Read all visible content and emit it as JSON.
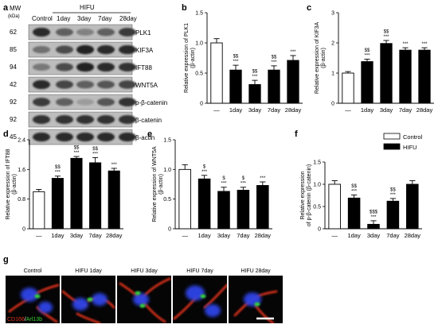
{
  "panel_letters": [
    "a",
    "b",
    "c",
    "d",
    "e",
    "f",
    "g"
  ],
  "blot": {
    "mw_header": "MW",
    "mw_unit": "(kDa)",
    "group_header": "HIFU",
    "lanes": [
      "Control",
      "1day",
      "3day",
      "7day",
      "28day"
    ],
    "rows": [
      {
        "mw": "62",
        "name": "PLK1",
        "intensity": [
          0.85,
          0.55,
          0.35,
          0.55,
          0.75
        ]
      },
      {
        "mw": "85",
        "name": "KIF3A",
        "intensity": [
          0.45,
          0.65,
          0.9,
          0.85,
          0.85
        ]
      },
      {
        "mw": "94",
        "name": "IFT88",
        "intensity": [
          0.4,
          0.65,
          0.9,
          0.85,
          0.8
        ]
      },
      {
        "mw": "42",
        "name": "WNT5A",
        "intensity": [
          0.85,
          0.7,
          0.55,
          0.6,
          0.7
        ]
      },
      {
        "mw": "92",
        "name": "p-β-catenin",
        "intensity": [
          0.75,
          0.55,
          0.2,
          0.6,
          0.8
        ]
      },
      {
        "mw": "92",
        "name": "β-catenin",
        "intensity": [
          0.8,
          0.8,
          0.8,
          0.8,
          0.8
        ]
      },
      {
        "mw": "45",
        "name": "β-actin",
        "intensity": [
          0.85,
          0.85,
          0.85,
          0.85,
          0.85
        ]
      }
    ]
  },
  "legend": {
    "items": [
      {
        "label": "Control",
        "color": "#ffffff"
      },
      {
        "label": "HIFU",
        "color": "#000000"
      }
    ]
  },
  "chart_data": [
    {
      "id": "b",
      "type": "bar",
      "categories": [
        "—",
        "1day",
        "3day",
        "7day",
        "28day"
      ],
      "values": [
        1.0,
        0.55,
        0.31,
        0.55,
        0.71
      ],
      "errors": [
        0.07,
        0.08,
        0.07,
        0.07,
        0.08
      ],
      "sig": [
        "",
        "$$\n***",
        "$$\n***",
        "$$\n***",
        "***"
      ],
      "ylabel_main": "Relative expression of PLK1",
      "ylabel_sub": "(β-actin)",
      "ylim": [
        0,
        1.5
      ],
      "yticks": [
        0,
        0.5,
        1.0,
        1.5
      ],
      "ytick_labels": [
        "0",
        "0.5",
        "1.0",
        "1.5"
      ]
    },
    {
      "id": "c",
      "type": "bar",
      "categories": [
        "—",
        "1day",
        "3day",
        "7day",
        "28day"
      ],
      "values": [
        1.0,
        1.38,
        1.98,
        1.76,
        1.76
      ],
      "errors": [
        0.05,
        0.08,
        0.1,
        0.08,
        0.08
      ],
      "sig": [
        "",
        "$$\n***",
        "$$\n***",
        "***",
        "***"
      ],
      "ylabel_main": "Relative expression of KIF3A",
      "ylabel_sub": "(β-actin)",
      "ylim": [
        0,
        3
      ],
      "yticks": [
        0,
        1,
        2,
        3
      ],
      "ytick_labels": [
        "0",
        "1",
        "2",
        "3"
      ]
    },
    {
      "id": "d",
      "type": "bar",
      "categories": [
        "—",
        "1day",
        "3day",
        "7day",
        "28day"
      ],
      "values": [
        1.0,
        1.36,
        1.9,
        1.78,
        1.56
      ],
      "errors": [
        0.06,
        0.06,
        0.05,
        0.14,
        0.07
      ],
      "sig": [
        "",
        "$$\n***",
        "$$\n***",
        "$$\n***",
        "***"
      ],
      "ylabel_main": "Relative expression of IFT88",
      "ylabel_sub": "(β-actin)",
      "ylim": [
        0,
        2.4
      ],
      "yticks": [
        0,
        0.8,
        1.6,
        2.4
      ],
      "ytick_labels": [
        "0",
        "0.8",
        "1.6",
        "2.4"
      ]
    },
    {
      "id": "e",
      "type": "bar",
      "categories": [
        "—",
        "1day",
        "3day",
        "7day",
        "28day"
      ],
      "values": [
        1.0,
        0.84,
        0.63,
        0.65,
        0.73
      ],
      "errors": [
        0.08,
        0.06,
        0.07,
        0.05,
        0.06
      ],
      "sig": [
        "",
        "$\n***",
        "$\n***",
        "$\n***",
        "***"
      ],
      "ylabel_main": "Relative expression of WNT5A",
      "ylabel_sub": "(β-actin)",
      "ylim": [
        0,
        1.5
      ],
      "yticks": [
        0,
        0.5,
        1.0,
        1.5
      ],
      "ytick_labels": [
        "0",
        "0.5",
        "1.0",
        "1.5"
      ]
    },
    {
      "id": "f",
      "type": "bar",
      "categories": [
        "—",
        "1day",
        "3day",
        "7day",
        "28day"
      ],
      "values": [
        1.0,
        0.69,
        0.1,
        0.62,
        1.0
      ],
      "errors": [
        0.08,
        0.07,
        0.08,
        0.06,
        0.08
      ],
      "sig": [
        "",
        "$$\n***",
        "$$$\n***",
        "$$\n***",
        ""
      ],
      "ylabel_main": "Relative expression",
      "ylabel_sub": "of p-β-catenin (β-catenin)",
      "ylim": [
        0,
        1.5
      ],
      "yticks": [
        0,
        0.5,
        1.0,
        1.5
      ],
      "ytick_labels": [
        "0",
        "0.5",
        "1.0",
        "1.5"
      ]
    }
  ],
  "micro": {
    "titles": [
      "Control",
      "HIFU 1day",
      "HIFU 3day",
      "HIFU 7day",
      "HIFU 28day"
    ],
    "stain_red": "CD166",
    "stain_sep": "/",
    "stain_green": "Arl13b",
    "colors": {
      "red": "#e0331e",
      "green": "#36d13a",
      "blue": "#2e45e8"
    }
  }
}
